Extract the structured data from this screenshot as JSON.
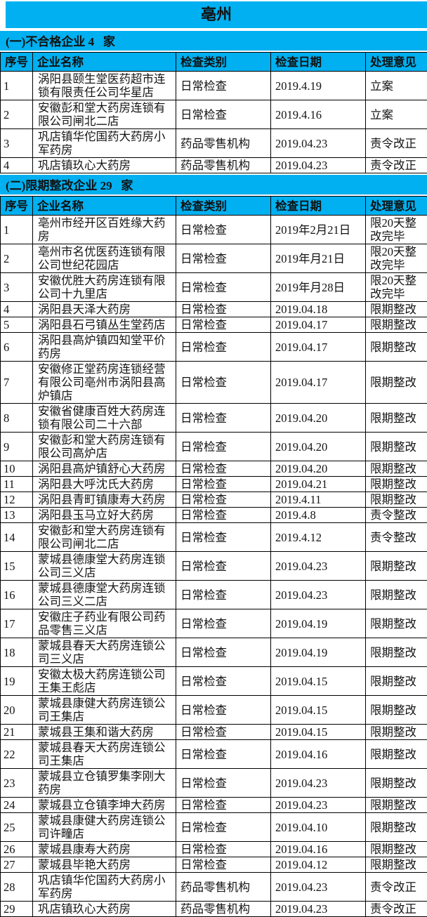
{
  "page": {
    "title": "亳州"
  },
  "colors": {
    "header_bg": "#00b0f0",
    "border": "#000000",
    "text": "#141414"
  },
  "table": {
    "columns": [
      "序号",
      "企业名称",
      "检查类别",
      "检查日期",
      "处理意见"
    ],
    "sections": [
      {
        "header": "(一)不合格企业 4   家",
        "rows": [
          {
            "no": "1",
            "name": "涡阳县颐生堂医药超市连锁有限责任公司华星店",
            "type": "日常检查",
            "date": "2019.4.19",
            "action": "立案"
          },
          {
            "no": "2",
            "name": "安徽彭和堂大药房连锁有限公司闸北二店",
            "type": "日常检查",
            "date": "2019.4.16",
            "action": "立案"
          },
          {
            "no": "3",
            "name": "巩店镇华佗国药大药房小军药房",
            "type": "药品零售机构",
            "date": "2019.04.23",
            "action": "责令改正"
          },
          {
            "no": "4",
            "name": "巩店镇玖心大药房",
            "type": "药品零售机构",
            "date": "2019.04.23",
            "action": "责令改正"
          }
        ]
      },
      {
        "header": "(二)限期整改企业 29   家",
        "rows": [
          {
            "no": "1",
            "name": "亳州市经开区百姓缘大药房",
            "type": "日常检查",
            "date": "2019年2月21日",
            "action": "限20天整改完毕"
          },
          {
            "no": "2",
            "name": "亳州市名优医药连锁有限公司世纪花园店",
            "type": "日常检查",
            "date": "2019年月21日",
            "action": "限20天整改完毕"
          },
          {
            "no": "3",
            "name": "安徽优胜大药房连锁有限公司十九里店",
            "type": "日常检查",
            "date": "2019年月28日",
            "action": "限20天整改完毕"
          },
          {
            "no": "4",
            "name": "涡阳县天泽大药房",
            "type": "日常检查",
            "date": "2019.04.18",
            "action": "限期整改"
          },
          {
            "no": "5",
            "name": "涡阳县石弓镇丛生堂药店",
            "type": "日常检查",
            "date": "2019.04.17",
            "action": "限期整改"
          },
          {
            "no": "6",
            "name": "涡阳县高炉镇四知堂平价药房",
            "type": "日常检查",
            "date": "2019.04.17",
            "action": "限期整改"
          },
          {
            "no": "7",
            "name": "安徽修正堂药房连锁经营有限公司亳州市涡阳县高炉镇店",
            "type": "日常检查",
            "date": "2019.04.17",
            "action": "限期整改"
          },
          {
            "no": "8",
            "name": "安徽省健康百姓大药房连锁有限公司二十六部",
            "type": "日常检查",
            "date": "2019.04.20",
            "action": "限期整改"
          },
          {
            "no": "9",
            "name": "安徽彭和堂大药房连锁有限公司高炉店",
            "type": "日常检查",
            "date": "2019.04.20",
            "action": "限期整改"
          },
          {
            "no": "10",
            "name": "涡阳县高炉镇舒心大药房",
            "type": "日常检查",
            "date": "2019.04.20",
            "action": "限期整改"
          },
          {
            "no": "11",
            "name": "涡阳县大呼沈氏大药房",
            "type": "日常检查",
            "date": "2019.04.21",
            "action": "限期整改"
          },
          {
            "no": "12",
            "name": "涡阳县青町镇康寿大药房",
            "type": "日常检查",
            "date": "2019.4.11",
            "action": "限期整改"
          },
          {
            "no": "13",
            "name": "涡阳县玉马立好大药房",
            "type": "日常检查",
            "date": "2019.4.8",
            "action": "责令整改"
          },
          {
            "no": "14",
            "name": "安徽彭和堂大药房连锁有限公司闸北二店",
            "type": "日常检查",
            "date": "2019.4.12",
            "action": "责令整改"
          },
          {
            "no": "15",
            "name": "蒙城县德康堂大药房连锁公司三义店",
            "type": "日常检查",
            "date": "2019.04.23",
            "action": "限期整改"
          },
          {
            "no": "16",
            "name": "蒙城县德康堂大药房连锁公司三义二店",
            "type": "日常检查",
            "date": "2019.04.23",
            "action": "限期整改"
          },
          {
            "no": "17",
            "name": "安徽庄子药业有限公司药品零售三义店",
            "type": "日常检查",
            "date": "2019.04.19",
            "action": "限期整改"
          },
          {
            "no": "18",
            "name": "蒙城县春天大药房连锁公司三义店",
            "type": "日常检查",
            "date": "2019.04.19",
            "action": "限期整改"
          },
          {
            "no": "19",
            "name": "安徽太极大药房连锁公司王集王彪店",
            "type": "日常检查",
            "date": "2019.04.15",
            "action": "限期整改"
          },
          {
            "no": "20",
            "name": "蒙城县康健大药房连锁公司王集店",
            "type": "日常检查",
            "date": "2019.04.15",
            "action": "限期整改"
          },
          {
            "no": "21",
            "name": "蒙城县王集和谐大药房",
            "type": "日常检查",
            "date": "2019.04.15",
            "action": "限期整改"
          },
          {
            "no": "22",
            "name": "蒙城县春天大药房连锁公司王集店",
            "type": "日常检查",
            "date": "2019.04.16",
            "action": "限期整改"
          },
          {
            "no": "23",
            "name": "蒙城县立仓镇罗集李刚大药房",
            "type": "日常检查",
            "date": "2019.04.23",
            "action": "限期整改"
          },
          {
            "no": "24",
            "name": "蒙城县立仓镇李坤大药房",
            "type": "日常检查",
            "date": "2019.04.23",
            "action": "限期整改"
          },
          {
            "no": "25",
            "name": "蒙城县康健大药房连锁公司许疃店",
            "type": "日常检查",
            "date": "2019.04.10",
            "action": "限期整改"
          },
          {
            "no": "26",
            "name": "蒙城县康寿大药房",
            "type": "日常检查",
            "date": "2019.04.16",
            "action": "限期整改"
          },
          {
            "no": "27",
            "name": "蒙城县毕艳大药房",
            "type": "日常检查",
            "date": "2019.04.12",
            "action": "限期整改"
          },
          {
            "no": "28",
            "name": "巩店镇华佗国药大药房小军药房",
            "type": "药品零售机构",
            "date": "2019.04.23",
            "action": "责令改正"
          },
          {
            "no": "29",
            "name": "巩店镇玖心大药房",
            "type": "药品零售机构",
            "date": "2019.04.23",
            "action": "责令改正"
          }
        ]
      }
    ]
  }
}
